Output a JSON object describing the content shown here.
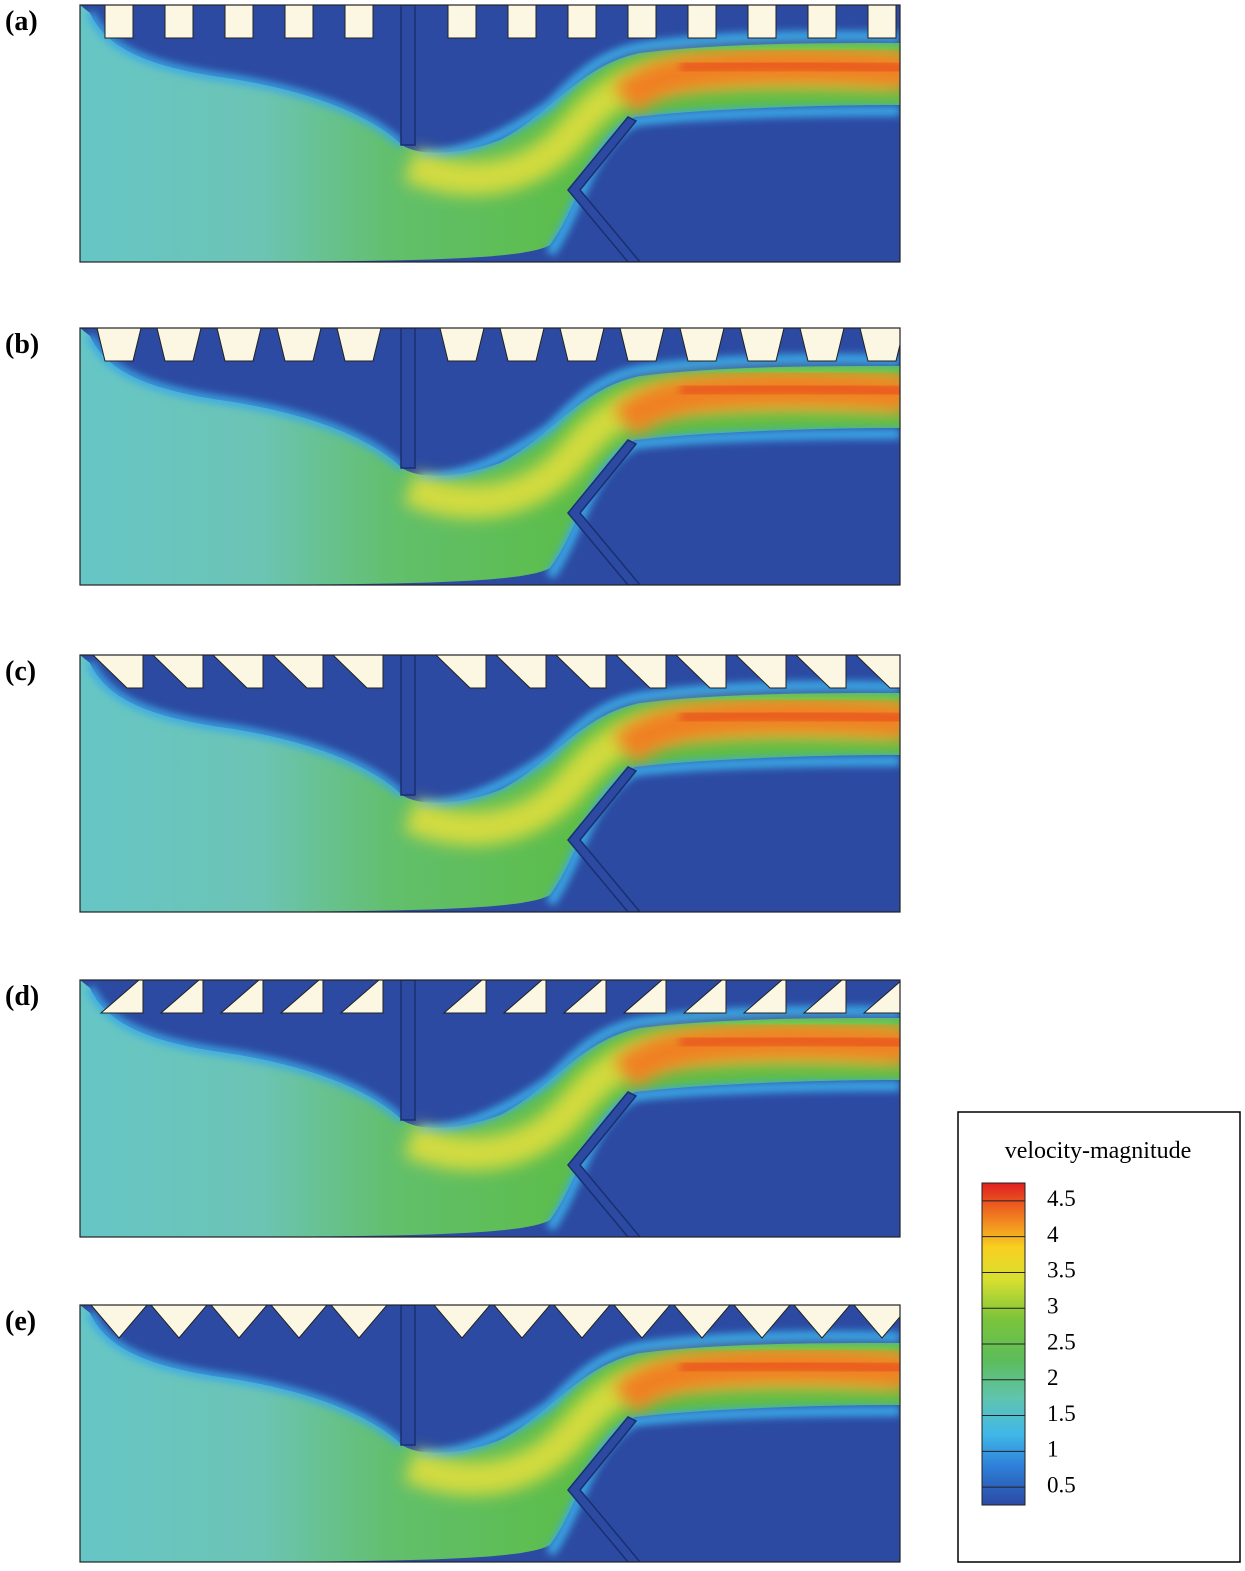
{
  "panels": [
    {
      "label": "(a)"
    },
    {
      "label": "(b)"
    },
    {
      "label": "(c)"
    },
    {
      "label": "(d)"
    },
    {
      "label": "(e)"
    }
  ],
  "colorbar": {
    "title": "velocity-magnitude",
    "range": [
      0.25,
      4.75
    ],
    "ticks": [
      0.5,
      1,
      1.5,
      2,
      2.5,
      3,
      3.5,
      4,
      4.5
    ]
  }
}
